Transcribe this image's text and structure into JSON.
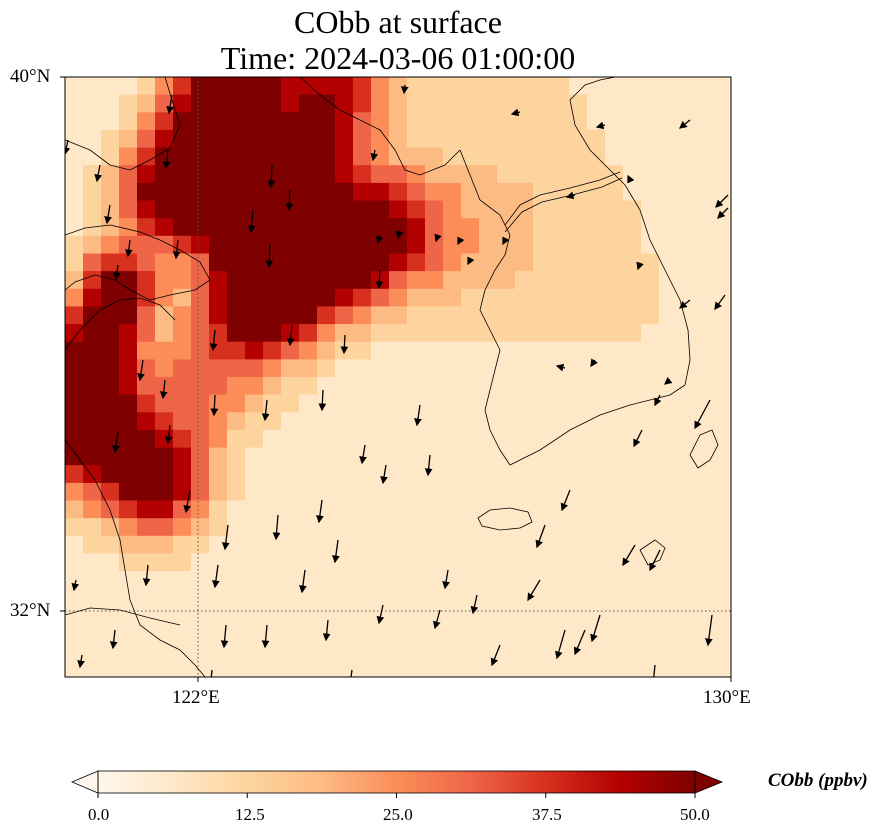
{
  "title": {
    "line1": "CObb at surface",
    "line2": "Time: 2024-03-06 01:00:00"
  },
  "map": {
    "extent": {
      "lon_min": 120.0,
      "lon_max": 130.0,
      "lat_min": 31.0,
      "lat_max": 40.0
    },
    "gridlines": {
      "lon": [
        122
      ],
      "lat": [
        32
      ],
      "style": "dotted"
    },
    "lat_labels": [
      "40°N",
      "32°N"
    ],
    "lon_labels": [
      "122°E",
      "130°E"
    ],
    "field": "CObb",
    "colormap": "OrRd"
  },
  "colorbar": {
    "title": "CObb (ppbv)",
    "ticks": [
      "0.0",
      "12.5",
      "25.0",
      "37.5",
      "50.0"
    ],
    "range": [
      0,
      50
    ],
    "extend": "both",
    "colors": [
      "#fff7ec",
      "#fee8c8",
      "#fdd49e",
      "#fdbb84",
      "#fc8d59",
      "#ef6548",
      "#d7301f",
      "#b30000",
      "#7f0000"
    ]
  }
}
